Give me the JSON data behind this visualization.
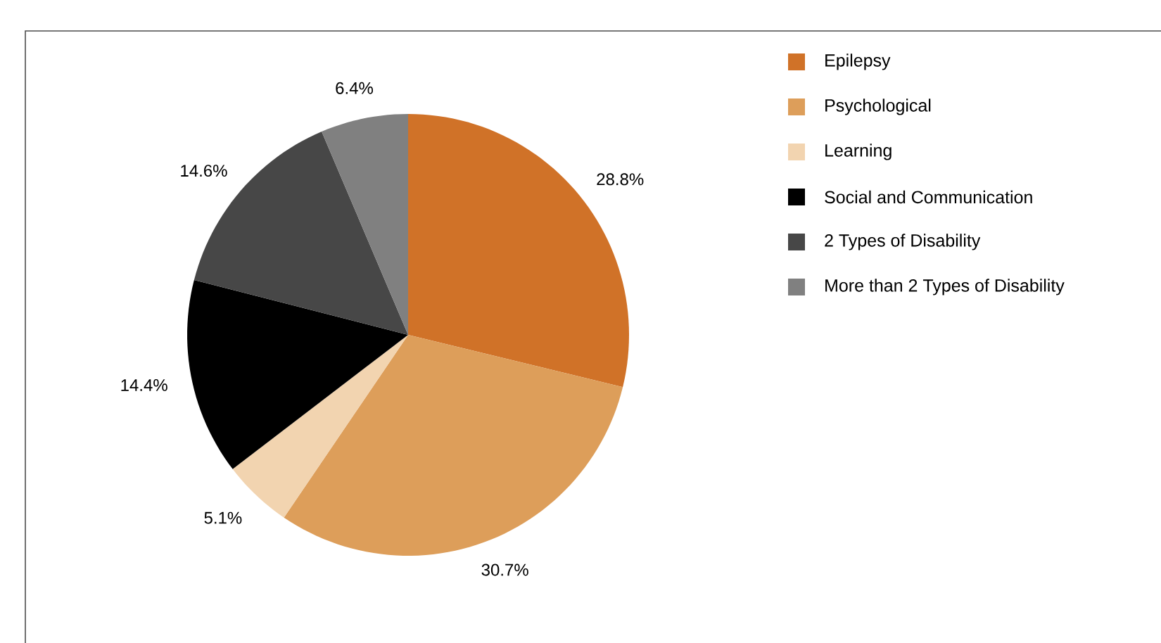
{
  "chart_data": {
    "type": "pie",
    "categories": [
      "Epilepsy",
      "Psychological",
      "Learning",
      "Social and Communication",
      "2 Types of Disability",
      "More than 2 Types of Disability"
    ],
    "values": [
      28.8,
      30.7,
      5.1,
      14.4,
      14.6,
      6.4
    ],
    "value_labels": [
      "28.8%",
      "30.7%",
      "5.1%",
      "14.4%",
      "14.6%",
      "6.4%"
    ],
    "colors": [
      "#d07228",
      "#dd9e5a",
      "#f2d4b0",
      "#000000",
      "#474747",
      "#808080"
    ],
    "legend": "right"
  }
}
